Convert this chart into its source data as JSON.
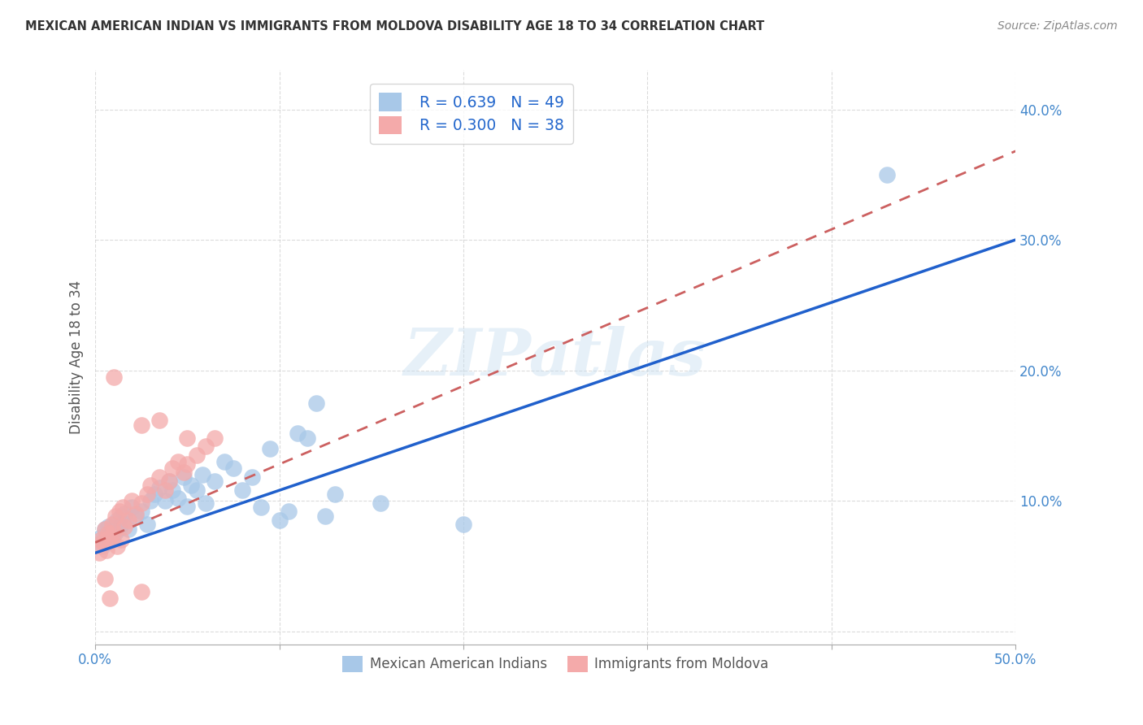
{
  "title": "MEXICAN AMERICAN INDIAN VS IMMIGRANTS FROM MOLDOVA DISABILITY AGE 18 TO 34 CORRELATION CHART",
  "source": "Source: ZipAtlas.com",
  "ylabel": "Disability Age 18 to 34",
  "xlim": [
    0.0,
    0.5
  ],
  "ylim": [
    -0.01,
    0.43
  ],
  "xticks": [
    0.0,
    0.1,
    0.2,
    0.3,
    0.4,
    0.5
  ],
  "xticklabels_sparse": {
    "0": "0.0%",
    "5": "50.0%"
  },
  "yticks": [
    0.0,
    0.1,
    0.2,
    0.3,
    0.4
  ],
  "yticklabels": [
    "",
    "10.0%",
    "20.0%",
    "30.0%",
    "40.0%"
  ],
  "watermark": "ZIPatlas",
  "legend_r1": "R = 0.639",
  "legend_n1": "N = 49",
  "legend_r2": "R = 0.300",
  "legend_n2": "N = 38",
  "blue_color": "#a8c8e8",
  "pink_color": "#f4aaaa",
  "line_blue": "#2060cc",
  "line_pink": "#cc6060",
  "blue_scatter": [
    [
      0.003,
      0.072
    ],
    [
      0.004,
      0.065
    ],
    [
      0.005,
      0.078
    ],
    [
      0.006,
      0.068
    ],
    [
      0.007,
      0.08
    ],
    [
      0.008,
      0.075
    ],
    [
      0.009,
      0.07
    ],
    [
      0.01,
      0.082
    ],
    [
      0.011,
      0.076
    ],
    [
      0.012,
      0.085
    ],
    [
      0.013,
      0.079
    ],
    [
      0.014,
      0.088
    ],
    [
      0.015,
      0.083
    ],
    [
      0.016,
      0.09
    ],
    [
      0.018,
      0.078
    ],
    [
      0.02,
      0.095
    ],
    [
      0.022,
      0.088
    ],
    [
      0.025,
      0.092
    ],
    [
      0.028,
      0.082
    ],
    [
      0.03,
      0.1
    ],
    [
      0.032,
      0.105
    ],
    [
      0.035,
      0.11
    ],
    [
      0.038,
      0.1
    ],
    [
      0.04,
      0.115
    ],
    [
      0.042,
      0.108
    ],
    [
      0.045,
      0.102
    ],
    [
      0.048,
      0.118
    ],
    [
      0.05,
      0.096
    ],
    [
      0.052,
      0.112
    ],
    [
      0.055,
      0.108
    ],
    [
      0.058,
      0.12
    ],
    [
      0.06,
      0.098
    ],
    [
      0.065,
      0.115
    ],
    [
      0.07,
      0.13
    ],
    [
      0.075,
      0.125
    ],
    [
      0.08,
      0.108
    ],
    [
      0.085,
      0.118
    ],
    [
      0.09,
      0.095
    ],
    [
      0.095,
      0.14
    ],
    [
      0.1,
      0.085
    ],
    [
      0.105,
      0.092
    ],
    [
      0.11,
      0.152
    ],
    [
      0.115,
      0.148
    ],
    [
      0.12,
      0.175
    ],
    [
      0.125,
      0.088
    ],
    [
      0.13,
      0.105
    ],
    [
      0.155,
      0.098
    ],
    [
      0.2,
      0.082
    ],
    [
      0.43,
      0.35
    ]
  ],
  "pink_scatter": [
    [
      0.002,
      0.06
    ],
    [
      0.003,
      0.07
    ],
    [
      0.004,
      0.068
    ],
    [
      0.005,
      0.078
    ],
    [
      0.006,
      0.062
    ],
    [
      0.007,
      0.075
    ],
    [
      0.008,
      0.072
    ],
    [
      0.009,
      0.082
    ],
    [
      0.01,
      0.076
    ],
    [
      0.011,
      0.088
    ],
    [
      0.012,
      0.065
    ],
    [
      0.013,
      0.092
    ],
    [
      0.014,
      0.07
    ],
    [
      0.015,
      0.095
    ],
    [
      0.016,
      0.08
    ],
    [
      0.018,
      0.085
    ],
    [
      0.02,
      0.1
    ],
    [
      0.022,
      0.09
    ],
    [
      0.025,
      0.098
    ],
    [
      0.028,
      0.105
    ],
    [
      0.03,
      0.112
    ],
    [
      0.035,
      0.118
    ],
    [
      0.038,
      0.108
    ],
    [
      0.04,
      0.115
    ],
    [
      0.042,
      0.125
    ],
    [
      0.045,
      0.13
    ],
    [
      0.048,
      0.122
    ],
    [
      0.05,
      0.128
    ],
    [
      0.055,
      0.135
    ],
    [
      0.06,
      0.142
    ],
    [
      0.01,
      0.195
    ],
    [
      0.025,
      0.158
    ],
    [
      0.035,
      0.162
    ],
    [
      0.005,
      0.04
    ],
    [
      0.008,
      0.025
    ],
    [
      0.05,
      0.148
    ],
    [
      0.065,
      0.148
    ],
    [
      0.025,
      0.03
    ]
  ],
  "blue_line_x": [
    0.0,
    0.5
  ],
  "blue_line_y": [
    0.06,
    0.3
  ],
  "pink_line_x": [
    0.0,
    0.5
  ],
  "pink_line_y": [
    0.068,
    0.368
  ],
  "background_color": "#ffffff",
  "grid_color": "#cccccc"
}
